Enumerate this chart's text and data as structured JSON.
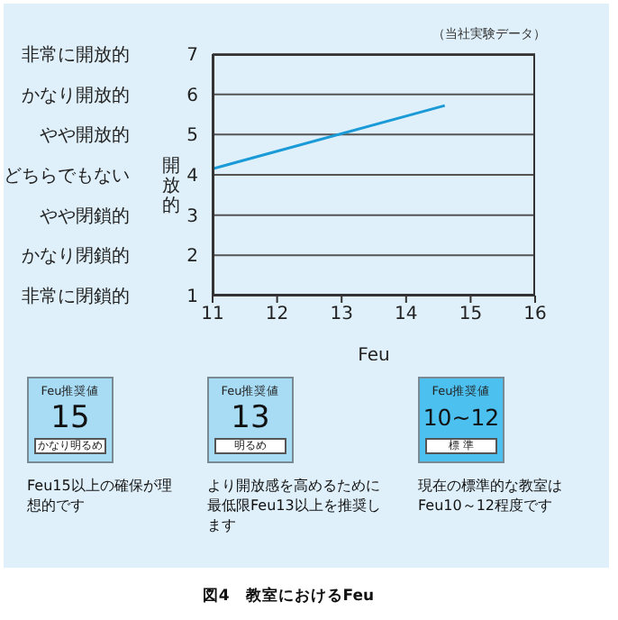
{
  "chart_data": {
    "type": "line",
    "title": "図4　教室におけるFeu",
    "xlabel": "Feu",
    "ylabel": "開放的",
    "x": [
      11,
      14.6
    ],
    "series": [
      {
        "color": "#1a9ad6",
        "values": [
          4.15,
          5.72
        ]
      }
    ],
    "xlim": [
      11,
      16
    ],
    "xticks": [
      11,
      12,
      13,
      14,
      15,
      16
    ],
    "ylim": [
      1,
      7
    ],
    "yticks": [
      1,
      2,
      3,
      4,
      5,
      6,
      7
    ],
    "y2_categories": [
      "非常に開放的",
      "かなり開放的",
      "やや開放的",
      "どちらでもない",
      "やや閉鎖的",
      "かなり閉鎖的",
      "非常に閉鎖的"
    ],
    "grid": "y",
    "marker": "none",
    "line_style": "solid",
    "annotations": [
      "（当社実験データ）",
      "Feu推奨値",
      "15",
      "かなり明るめ",
      "Feu15以上の確保が理想的です",
      "Feu推奨値",
      "13",
      "明るめ",
      "より開放感を高めるために最低限Feu13以上を推奨します",
      "Feu推奨値",
      "10~12",
      "標 準",
      "現在の標準的な教室はFeu10～12程度です"
    ]
  }
}
